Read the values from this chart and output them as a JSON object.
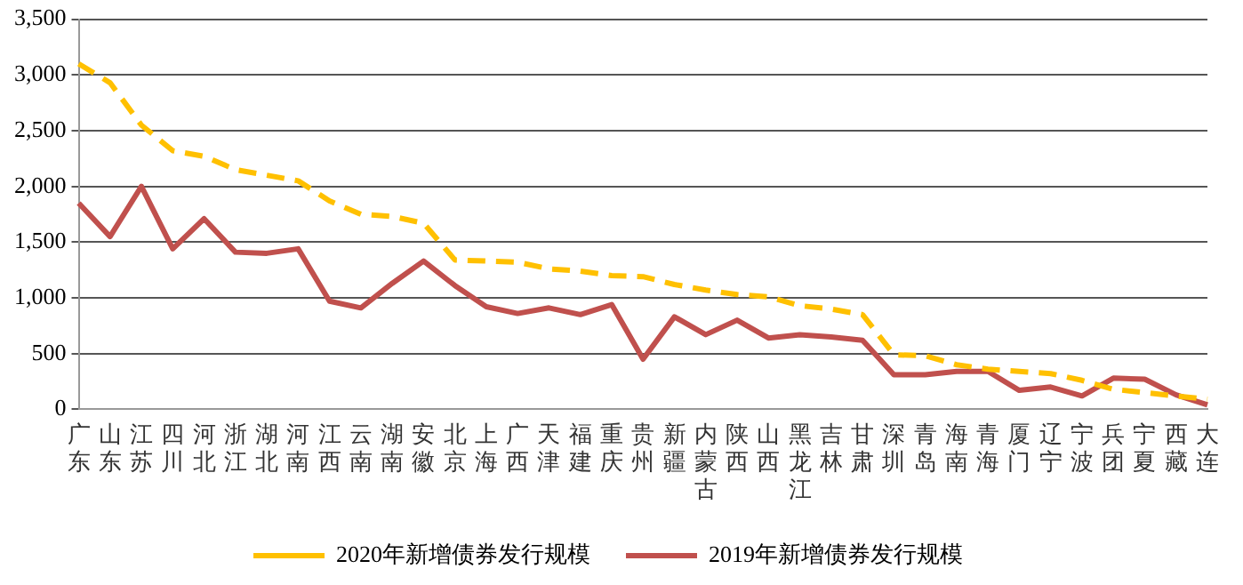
{
  "chart_data": {
    "type": "line",
    "categories": [
      "广东",
      "山东",
      "江苏",
      "四川",
      "河北",
      "浙江",
      "湖北",
      "河南",
      "江西",
      "云南",
      "湖南",
      "安徽",
      "北京",
      "上海",
      "广西",
      "天津",
      "福建",
      "重庆",
      "贵州",
      "新疆",
      "内蒙古",
      "陕西",
      "山西",
      "黑龙江",
      "吉林",
      "甘肃",
      "深圳",
      "青岛",
      "海南",
      "青海",
      "厦门",
      "辽宁",
      "宁波",
      "兵团",
      "宁夏",
      "西藏",
      "大连"
    ],
    "series": [
      {
        "name": "2020年新增债券发行规模",
        "color": "#ffc000",
        "line_style": "dashed",
        "values": [
          3100,
          2930,
          2550,
          2320,
          2270,
          2150,
          2100,
          2050,
          1870,
          1750,
          1730,
          1670,
          1340,
          1330,
          1320,
          1260,
          1240,
          1200,
          1190,
          1120,
          1070,
          1030,
          1010,
          930,
          900,
          850,
          490,
          480,
          400,
          360,
          340,
          320,
          260,
          180,
          150,
          120,
          90
        ]
      },
      {
        "name": "2019年新增债券发行规模",
        "color": "#c0504d",
        "line_style": "solid",
        "values": [
          1850,
          1550,
          2000,
          1440,
          1710,
          1410,
          1400,
          1440,
          970,
          910,
          1130,
          1330,
          1110,
          920,
          860,
          910,
          850,
          940,
          450,
          830,
          670,
          800,
          640,
          670,
          650,
          620,
          310,
          310,
          340,
          340,
          170,
          200,
          120,
          280,
          270,
          130,
          40
        ]
      }
    ],
    "ylim": [
      0,
      3500
    ],
    "yticks": [
      {
        "value": 0,
        "label": "0"
      },
      {
        "value": 500,
        "label": "500"
      },
      {
        "value": 1000,
        "label": "1,000"
      },
      {
        "value": 1500,
        "label": "1,500"
      },
      {
        "value": 2000,
        "label": "2,000"
      },
      {
        "value": 2500,
        "label": "2,500"
      },
      {
        "value": 3000,
        "label": "3,000"
      },
      {
        "value": 3500,
        "label": "3,500"
      }
    ],
    "grid": "y",
    "legend": "bottom",
    "marker": "none"
  }
}
